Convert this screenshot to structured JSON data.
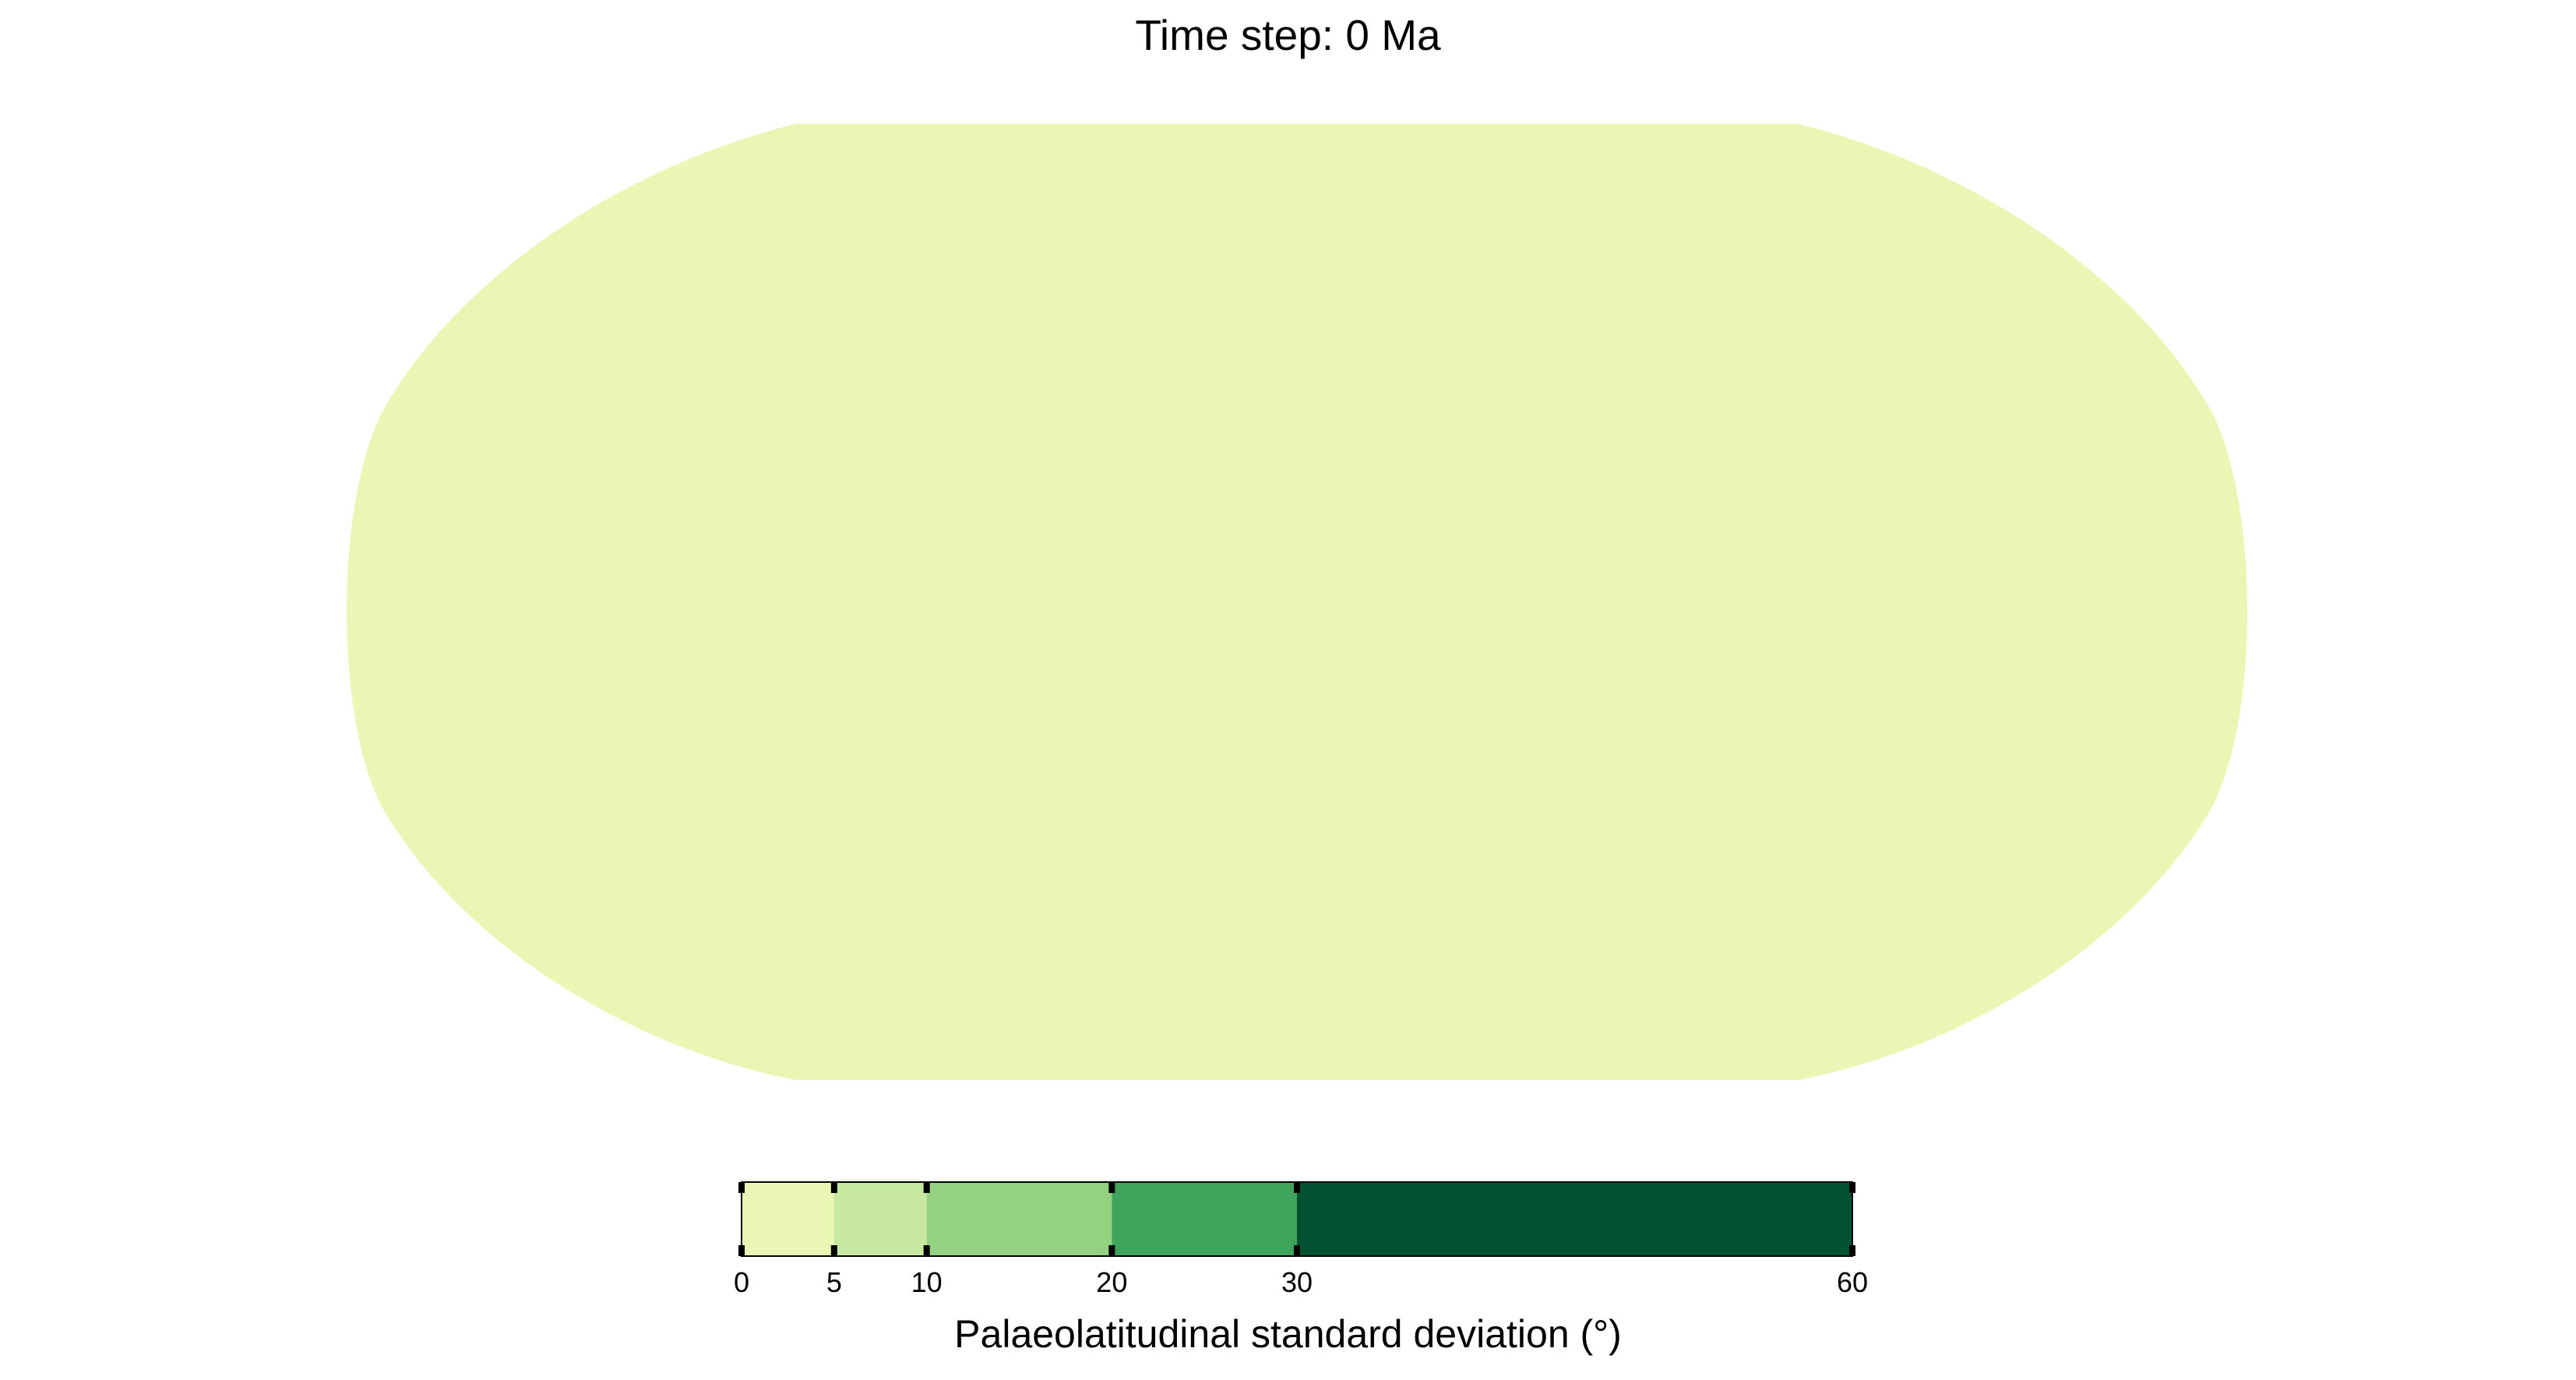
{
  "figure": {
    "title": "Time step: 0 Ma"
  },
  "map": {
    "projection": "robinson",
    "fill_class_index": 0,
    "fill_value_range": [
      0,
      5
    ]
  },
  "colorbar": {
    "label": "Palaeolatitudinal standard deviation (°)",
    "range": [
      0,
      60
    ],
    "bins": [
      {
        "from": 0,
        "to": 5,
        "color": "#e9f6b4"
      },
      {
        "from": 5,
        "to": 10,
        "color": "#c6e89f"
      },
      {
        "from": 10,
        "to": 20,
        "color": "#94d181"
      },
      {
        "from": 20,
        "to": 30,
        "color": "#3fa55c"
      },
      {
        "from": 30,
        "to": 60,
        "color": "#005230"
      }
    ],
    "ticks": [
      0,
      5,
      10,
      20,
      30,
      60
    ],
    "tick_labels": [
      "0",
      "5",
      "10",
      "20",
      "30",
      "60"
    ]
  }
}
